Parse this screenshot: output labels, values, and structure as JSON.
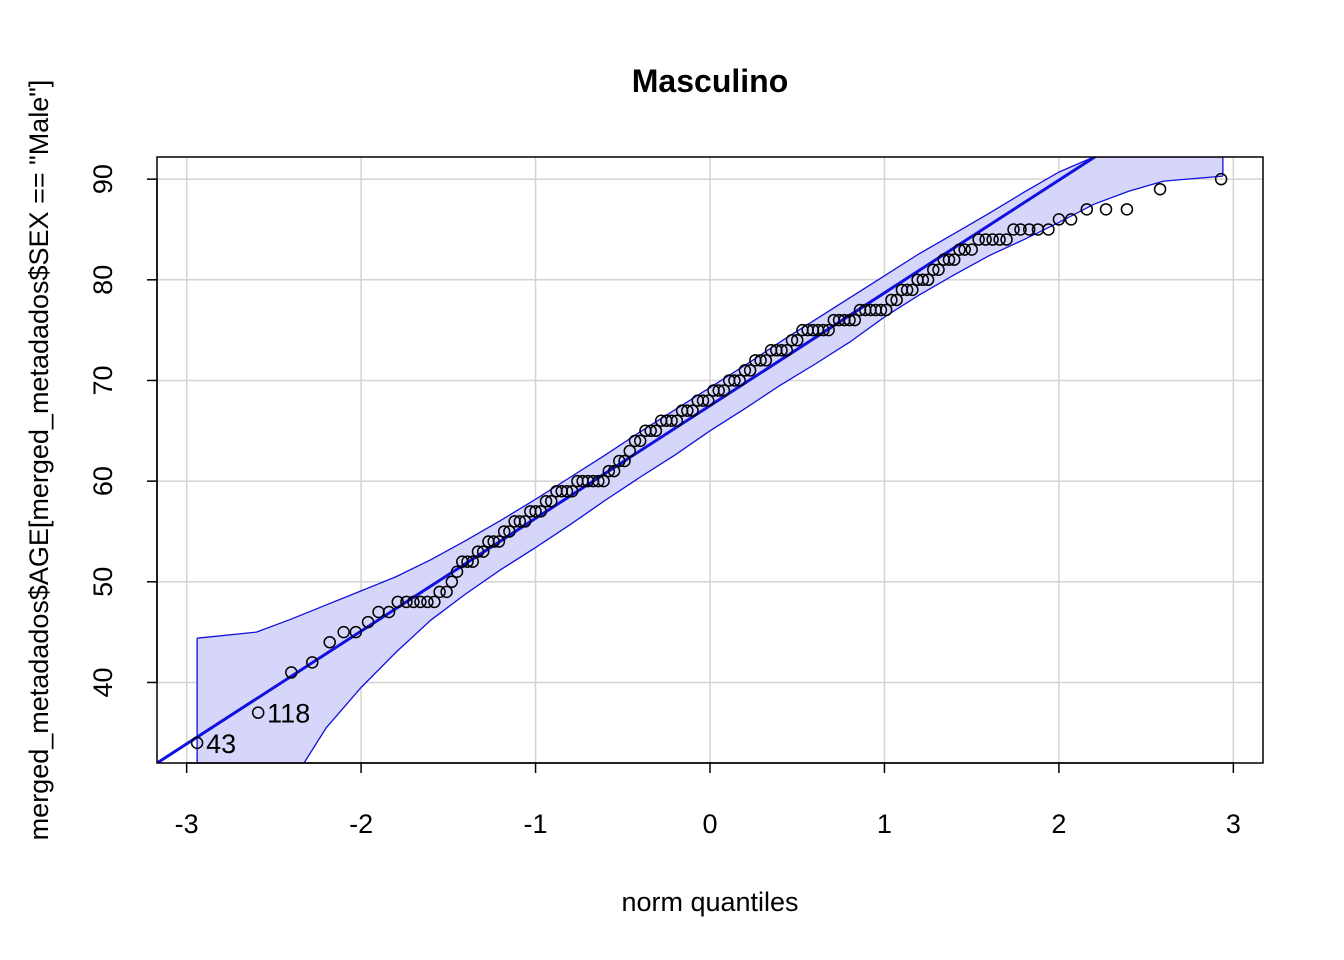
{
  "chart_data": {
    "type": "scatter",
    "title": "Masculino",
    "xlabel": "norm quantiles",
    "ylabel": "merged_metadados$AGE[merged_metadados$SEX == \"Male\"]",
    "xlim": [
      -3.17,
      3.17
    ],
    "ylim": [
      32,
      92.2
    ],
    "x_ticks": [
      -3,
      -2,
      -1,
      0,
      1,
      2,
      3
    ],
    "y_ticks": [
      40,
      50,
      60,
      70,
      80,
      90
    ],
    "grid": true,
    "reference_line": {
      "intercept": 67.5,
      "slope": 11.2
    },
    "envelope": {
      "x": [
        -2.94,
        -2.6,
        -2.4,
        -2.2,
        -2.0,
        -1.8,
        -1.6,
        -1.4,
        -1.2,
        -1.0,
        -0.8,
        -0.6,
        -0.4,
        -0.2,
        0.0,
        0.2,
        0.4,
        0.6,
        0.8,
        1.0,
        1.2,
        1.4,
        1.6,
        1.8,
        2.0,
        2.2,
        2.4,
        2.6,
        2.94
      ],
      "upper": [
        44.4,
        45.0,
        46.3,
        47.7,
        49.1,
        50.5,
        52.2,
        54.1,
        56.1,
        58.2,
        60.4,
        62.6,
        64.9,
        67.1,
        69.3,
        71.5,
        73.8,
        76.0,
        78.2,
        80.4,
        82.6,
        84.6,
        86.6,
        88.7,
        90.7,
        92.2,
        92.2,
        92.2,
        92.2
      ],
      "lower": [
        30.0,
        30.0,
        30.0,
        35.5,
        39.5,
        43.0,
        46.2,
        48.8,
        51.2,
        53.4,
        55.7,
        58.1,
        60.4,
        62.6,
        65.0,
        67.2,
        69.5,
        71.6,
        73.8,
        76.3,
        78.5,
        80.5,
        82.4,
        84.0,
        85.7,
        87.5,
        88.8,
        89.8,
        90.3
      ]
    },
    "points": {
      "x": [
        -2.94,
        -2.59,
        -2.4,
        -2.28,
        -2.18,
        -2.1,
        -2.03,
        -1.96,
        -1.9,
        -1.84,
        -1.79,
        -1.74,
        -1.7,
        -1.66,
        -1.62,
        -1.58,
        -1.55,
        -1.51,
        -1.48,
        -1.45,
        -1.42,
        -1.39,
        -1.36,
        -1.33,
        -1.3,
        -1.27,
        -1.24,
        -1.21,
        -1.18,
        -1.15,
        -1.12,
        -1.09,
        -1.06,
        -1.03,
        -1.0,
        -0.97,
        -0.94,
        -0.91,
        -0.88,
        -0.85,
        -0.82,
        -0.79,
        -0.76,
        -0.73,
        -0.7,
        -0.67,
        -0.64,
        -0.61,
        -0.58,
        -0.55,
        -0.52,
        -0.49,
        -0.46,
        -0.43,
        -0.4,
        -0.37,
        -0.34,
        -0.31,
        -0.28,
        -0.25,
        -0.22,
        -0.19,
        -0.16,
        -0.13,
        -0.1,
        -0.07,
        -0.04,
        -0.01,
        0.02,
        0.05,
        0.08,
        0.11,
        0.14,
        0.17,
        0.2,
        0.23,
        0.26,
        0.29,
        0.32,
        0.35,
        0.38,
        0.41,
        0.44,
        0.47,
        0.5,
        0.53,
        0.56,
        0.59,
        0.62,
        0.65,
        0.68,
        0.71,
        0.74,
        0.77,
        0.8,
        0.83,
        0.86,
        0.89,
        0.92,
        0.95,
        0.98,
        1.01,
        1.04,
        1.07,
        1.1,
        1.13,
        1.16,
        1.19,
        1.22,
        1.25,
        1.28,
        1.31,
        1.34,
        1.37,
        1.4,
        1.43,
        1.46,
        1.5,
        1.54,
        1.58,
        1.62,
        1.66,
        1.7,
        1.74,
        1.78,
        1.83,
        1.88,
        1.94,
        2.0,
        2.07,
        2.16,
        2.27,
        2.39,
        2.58,
        2.93
      ],
      "y": [
        34,
        37,
        41,
        42,
        44,
        45,
        45,
        46,
        47,
        47,
        48,
        48,
        48,
        48,
        48,
        48,
        49,
        49,
        50,
        51,
        52,
        52,
        52,
        53,
        53,
        54,
        54,
        54,
        55,
        55,
        56,
        56,
        56,
        57,
        57,
        57,
        58,
        58,
        59,
        59,
        59,
        59,
        60,
        60,
        60,
        60,
        60,
        60,
        61,
        61,
        62,
        62,
        63,
        64,
        64,
        65,
        65,
        65,
        66,
        66,
        66,
        66,
        67,
        67,
        67,
        68,
        68,
        68,
        69,
        69,
        69,
        70,
        70,
        70,
        71,
        71,
        72,
        72,
        72,
        73,
        73,
        73,
        73,
        74,
        74,
        75,
        75,
        75,
        75,
        75,
        75,
        76,
        76,
        76,
        76,
        76,
        77,
        77,
        77,
        77,
        77,
        77,
        78,
        78,
        79,
        79,
        79,
        80,
        80,
        80,
        81,
        81,
        82,
        82,
        82,
        83,
        83,
        83,
        84,
        84,
        84,
        84,
        84,
        85,
        85,
        85,
        85,
        85,
        86,
        86,
        87,
        87,
        87,
        89,
        90
      ]
    },
    "point_labels": [
      {
        "text": "43",
        "x": -2.94,
        "y": 34
      },
      {
        "text": "118",
        "x": -2.59,
        "y": 37
      }
    ],
    "colors": {
      "band": "#d6d6fa",
      "line": "#1010e0",
      "points": "#000000",
      "grid": "#d3d3d3"
    }
  }
}
